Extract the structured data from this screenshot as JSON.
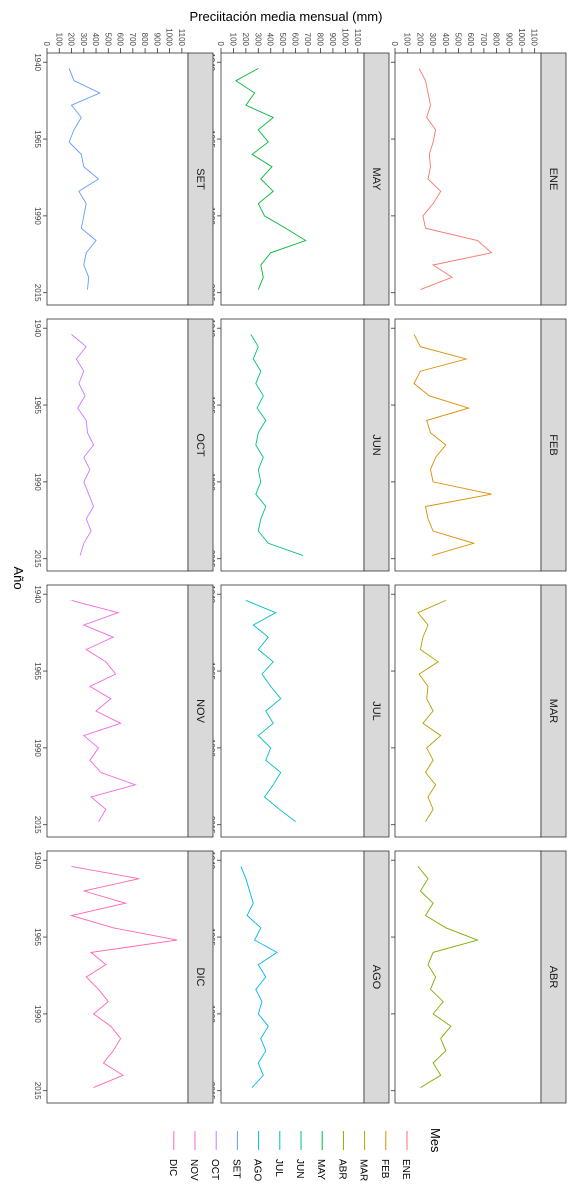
{
  "chart_data": {
    "type": "line",
    "title": "",
    "xlabel": "Año",
    "ylabel": "Preciitación media mensual (mm)",
    "x_range": [
      1940,
      2020
    ],
    "x_ticks": [
      1940,
      1965,
      1990,
      2015
    ],
    "ylim": [
      0,
      1150
    ],
    "y_ticks": [
      0,
      100,
      200,
      300,
      400,
      500,
      600,
      700,
      800,
      900,
      1000,
      1100
    ],
    "legend_title": "Mes",
    "legend_position": "bottom",
    "series": [
      {
        "name": "ENE",
        "color": "#F8766D",
        "years": [
          1942,
          1946,
          1950,
          1954,
          1958,
          1962,
          1966,
          1970,
          1974,
          1978,
          1982,
          1986,
          1990,
          1994,
          1998,
          2002,
          2006,
          2010,
          2014
        ],
        "values": [
          190,
          240,
          260,
          280,
          250,
          320,
          300,
          270,
          280,
          260,
          360,
          300,
          220,
          240,
          650,
          760,
          300,
          450,
          200
        ]
      },
      {
        "name": "FEB",
        "color": "#DE8C00",
        "years": [
          1942,
          1946,
          1950,
          1954,
          1958,
          1962,
          1966,
          1970,
          1974,
          1978,
          1982,
          1986,
          1990,
          1994,
          1998,
          2002,
          2006,
          2010,
          2014
        ],
        "values": [
          150,
          200,
          560,
          200,
          150,
          270,
          580,
          250,
          280,
          400,
          320,
          280,
          300,
          760,
          240,
          260,
          300,
          620,
          290
        ]
      },
      {
        "name": "MAR",
        "color": "#B79F00",
        "years": [
          1942,
          1946,
          1950,
          1954,
          1958,
          1962,
          1966,
          1970,
          1974,
          1978,
          1982,
          1986,
          1990,
          1994,
          1998,
          2002,
          2006,
          2010,
          2014
        ],
        "values": [
          400,
          180,
          260,
          220,
          200,
          340,
          190,
          260,
          250,
          300,
          220,
          360,
          250,
          300,
          240,
          320,
          260,
          300,
          240
        ]
      },
      {
        "name": "ABR",
        "color": "#7CAE00",
        "years": [
          1942,
          1946,
          1950,
          1954,
          1958,
          1962,
          1966,
          1970,
          1974,
          1978,
          1982,
          1986,
          1990,
          1994,
          1998,
          2002,
          2006,
          2010,
          2014
        ],
        "values": [
          180,
          260,
          200,
          300,
          240,
          400,
          650,
          300,
          260,
          320,
          280,
          380,
          300,
          440,
          360,
          400,
          300,
          360,
          200
        ]
      },
      {
        "name": "MAY",
        "color": "#00BA38",
        "years": [
          1942,
          1946,
          1950,
          1954,
          1958,
          1962,
          1966,
          1970,
          1974,
          1978,
          1982,
          1986,
          1990,
          1994,
          1998,
          2002,
          2006,
          2010,
          2014
        ],
        "values": [
          300,
          120,
          270,
          200,
          420,
          300,
          380,
          250,
          410,
          320,
          420,
          300,
          350,
          520,
          680,
          400,
          320,
          340,
          300
        ]
      },
      {
        "name": "JUN",
        "color": "#00C08B",
        "years": [
          1942,
          1946,
          1950,
          1954,
          1958,
          1962,
          1966,
          1970,
          1974,
          1978,
          1982,
          1986,
          1990,
          1994,
          1998,
          2002,
          2006,
          2010,
          2014
        ],
        "values": [
          240,
          300,
          260,
          320,
          280,
          340,
          290,
          360,
          300,
          280,
          340,
          300,
          320,
          280,
          360,
          320,
          300,
          380,
          660
        ]
      },
      {
        "name": "JUL",
        "color": "#00BFC4",
        "years": [
          1942,
          1946,
          1950,
          1954,
          1958,
          1962,
          1966,
          1970,
          1974,
          1978,
          1982,
          1986,
          1990,
          1994,
          1998,
          2002,
          2006,
          2010,
          2014
        ],
        "values": [
          200,
          440,
          260,
          380,
          300,
          420,
          330,
          400,
          480,
          360,
          420,
          300,
          400,
          360,
          480,
          420,
          350,
          470,
          600
        ]
      },
      {
        "name": "AGO",
        "color": "#00B4F0",
        "years": [
          1942,
          1946,
          1950,
          1954,
          1958,
          1962,
          1966,
          1970,
          1974,
          1978,
          1982,
          1986,
          1990,
          1994,
          1998,
          2002,
          2006,
          2010,
          2014
        ],
        "values": [
          160,
          200,
          230,
          260,
          210,
          320,
          270,
          450,
          300,
          360,
          280,
          330,
          300,
          380,
          320,
          360,
          300,
          340,
          250
        ]
      },
      {
        "name": "SET",
        "color": "#619CFF",
        "years": [
          1942,
          1946,
          1950,
          1954,
          1958,
          1962,
          1966,
          1970,
          1974,
          1978,
          1982,
          1986,
          1990,
          1994,
          1998,
          2002,
          2006,
          2010,
          2014
        ],
        "values": [
          180,
          220,
          430,
          200,
          280,
          220,
          180,
          280,
          300,
          420,
          260,
          320,
          300,
          280,
          400,
          320,
          300,
          340,
          330
        ]
      },
      {
        "name": "OCT",
        "color": "#C77CFF",
        "years": [
          1942,
          1946,
          1950,
          1954,
          1958,
          1962,
          1966,
          1970,
          1974,
          1978,
          1982,
          1986,
          1990,
          1994,
          1998,
          2002,
          2006,
          2010,
          2014
        ],
        "values": [
          200,
          320,
          240,
          300,
          260,
          310,
          250,
          320,
          330,
          380,
          300,
          350,
          300,
          340,
          380,
          320,
          360,
          300,
          270
        ]
      },
      {
        "name": "NOV",
        "color": "#F564E3",
        "years": [
          1942,
          1946,
          1950,
          1954,
          1958,
          1962,
          1966,
          1970,
          1974,
          1978,
          1982,
          1986,
          1990,
          1994,
          1998,
          2002,
          2006,
          2010,
          2014
        ],
        "values": [
          200,
          580,
          300,
          540,
          320,
          480,
          560,
          350,
          520,
          400,
          600,
          300,
          420,
          350,
          440,
          720,
          360,
          480,
          420
        ]
      },
      {
        "name": "DIC",
        "color": "#FF64B0",
        "years": [
          1942,
          1946,
          1950,
          1954,
          1958,
          1962,
          1966,
          1970,
          1974,
          1978,
          1982,
          1986,
          1990,
          1994,
          1998,
          2002,
          2006,
          2010,
          2014
        ],
        "values": [
          200,
          750,
          300,
          640,
          200,
          540,
          1060,
          360,
          480,
          320,
          420,
          500,
          380,
          520,
          600,
          540,
          460,
          620,
          380
        ]
      }
    ]
  }
}
